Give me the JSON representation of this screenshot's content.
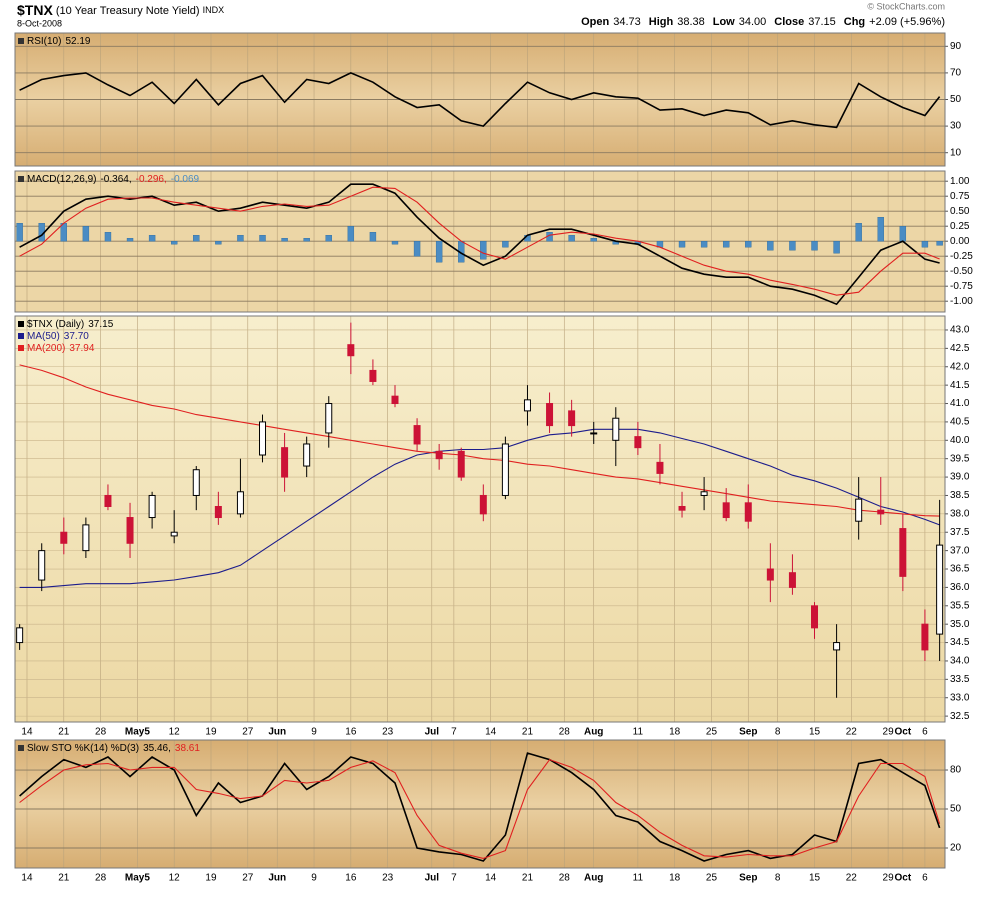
{
  "header": {
    "symbol": "$TNX",
    "description": "(10 Year Treasury Note Yield)",
    "exchange": "INDX",
    "date": "8-Oct-2008",
    "stats": [
      {
        "label": "Open",
        "value": "34.73"
      },
      {
        "label": "High",
        "value": "38.38"
      },
      {
        "label": "Low",
        "value": "34.00"
      },
      {
        "label": "Close",
        "value": "37.15"
      },
      {
        "label": "Chg",
        "value": "+2.09 (+5.96%)"
      }
    ],
    "watermark": "© StockCharts.com"
  },
  "chart_data": [
    {
      "type": "line",
      "xlim": [
        -1.63,
        124.73
      ],
      "ylim": [
        0,
        100
      ],
      "yticks": [
        10,
        30,
        50,
        70,
        90
      ],
      "grid": true,
      "x": [
        -1,
        2,
        5,
        8,
        11,
        14,
        17,
        20,
        23,
        26,
        29,
        32,
        35,
        38,
        41,
        44,
        47,
        50,
        53,
        56,
        59,
        62,
        65,
        68,
        71,
        74,
        77,
        80,
        83,
        86,
        89,
        92,
        95,
        98,
        101,
        104,
        107,
        110,
        113,
        116,
        119,
        122,
        124
      ],
      "series": [
        {
          "name": "RSI(10)",
          "value_label": "52.19",
          "color": "#000000",
          "values": [
            57,
            65,
            68,
            70,
            61,
            53,
            63,
            47,
            65,
            46,
            62,
            68,
            48,
            65,
            62,
            70,
            63,
            52,
            44,
            46,
            34,
            30,
            47,
            63,
            55,
            50,
            55,
            52,
            51,
            42,
            43,
            38,
            42,
            40,
            31,
            34,
            31,
            29,
            62,
            52,
            44,
            38,
            52.19
          ]
        }
      ]
    },
    {
      "type": "line",
      "xlim": [
        -1.63,
        124.73
      ],
      "ylim": [
        -1.18,
        1.17
      ],
      "grid": true,
      "yticks": [
        {
          "value": -1,
          "label": "-1.00"
        },
        {
          "value": -0.75,
          "label": "-0.75"
        },
        {
          "value": -0.5,
          "label": "-0.50"
        },
        {
          "value": -0.25,
          "label": "-0.25"
        },
        {
          "value": 0,
          "label": "0.00"
        },
        {
          "value": 0.25,
          "label": "0.25"
        },
        {
          "value": 0.5,
          "label": "0.50"
        },
        {
          "value": 0.75,
          "label": "0.75"
        },
        {
          "value": 1,
          "label": "1.00"
        }
      ],
      "x": [
        -1,
        2,
        5,
        8,
        11,
        14,
        17,
        20,
        23,
        26,
        29,
        32,
        35,
        38,
        41,
        44,
        47,
        50,
        53,
        56,
        59,
        62,
        65,
        68,
        71,
        74,
        77,
        80,
        83,
        86,
        89,
        92,
        95,
        98,
        101,
        104,
        107,
        110,
        113,
        116,
        119,
        122,
        124
      ],
      "series": [
        {
          "name": "MACD(12,26,9)",
          "value_label": "-0.364,",
          "color": "#000000",
          "kind": "line",
          "values": [
            -0.1,
            0.1,
            0.5,
            0.7,
            0.75,
            0.7,
            0.75,
            0.6,
            0.65,
            0.5,
            0.55,
            0.65,
            0.6,
            0.55,
            0.65,
            0.95,
            0.95,
            0.8,
            0.4,
            0.05,
            -0.2,
            -0.4,
            -0.25,
            0.1,
            0.2,
            0.2,
            0.1,
            0.0,
            -0.05,
            -0.25,
            -0.45,
            -0.55,
            -0.6,
            -0.6,
            -0.75,
            -0.8,
            -0.9,
            -1.05,
            -0.6,
            -0.15,
            0.0,
            -0.3,
            -0.364
          ]
        },
        {
          "value_label": "-0.296,",
          "color": "#e02020",
          "kind": "line",
          "values": [
            -0.25,
            -0.05,
            0.3,
            0.55,
            0.7,
            0.72,
            0.72,
            0.65,
            0.6,
            0.55,
            0.5,
            0.58,
            0.62,
            0.58,
            0.6,
            0.75,
            0.9,
            0.88,
            0.65,
            0.3,
            0.0,
            -0.2,
            -0.3,
            -0.1,
            0.1,
            0.15,
            0.12,
            0.05,
            0.0,
            -0.1,
            -0.25,
            -0.4,
            -0.5,
            -0.55,
            -0.65,
            -0.72,
            -0.8,
            -0.9,
            -0.85,
            -0.5,
            -0.2,
            -0.2,
            -0.296
          ]
        },
        {
          "value_label": "-0.069",
          "color": "#4a8cc4",
          "kind": "bar",
          "values": [
            0.3,
            0.3,
            0.3,
            0.25,
            0.15,
            0.05,
            0.1,
            -0.05,
            0.1,
            -0.05,
            0.1,
            0.1,
            0.05,
            0.05,
            0.1,
            0.25,
            0.15,
            -0.05,
            -0.25,
            -0.35,
            -0.35,
            -0.3,
            -0.1,
            0.1,
            0.15,
            0.1,
            0.05,
            -0.05,
            -0.05,
            -0.1,
            -0.1,
            -0.1,
            -0.1,
            -0.1,
            -0.15,
            -0.15,
            -0.15,
            -0.2,
            0.3,
            0.4,
            0.25,
            -0.1,
            -0.069
          ]
        }
      ]
    },
    {
      "type": "candlestick",
      "xlim": [
        -1.63,
        124.73
      ],
      "ylim": [
        32.34,
        43.38
      ],
      "grid": true,
      "up_color": "#000000",
      "down_color": "#cc1236",
      "yticks": [
        32.5,
        {
          "value": 33,
          "label": "33.0"
        },
        33.5,
        {
          "value": 34,
          "label": "34.0"
        },
        34.5,
        {
          "value": 35,
          "label": "35.0"
        },
        35.5,
        {
          "value": 36,
          "label": "36.0"
        },
        36.5,
        {
          "value": 37,
          "label": "37.0"
        },
        37.5,
        {
          "value": 38,
          "label": "38.0"
        },
        38.5,
        {
          "value": 39,
          "label": "39.0"
        },
        39.5,
        {
          "value": 40,
          "label": "40.0"
        },
        40.5,
        {
          "value": 41,
          "label": "41.0"
        },
        41.5,
        {
          "value": 42,
          "label": "42.0"
        },
        42.5,
        {
          "value": 43,
          "label": "43.0"
        }
      ],
      "xticks": [
        {
          "value": 0,
          "label": "14"
        },
        {
          "value": 5,
          "label": "21"
        },
        {
          "value": 10,
          "label": "28"
        },
        {
          "value": 15,
          "label": "May5"
        },
        {
          "value": 20,
          "label": "12"
        },
        {
          "value": 25,
          "label": "19"
        },
        {
          "value": 30,
          "label": "27"
        },
        {
          "value": 34,
          "label": "Jun"
        },
        {
          "value": 39,
          "label": "9"
        },
        {
          "value": 44,
          "label": "16"
        },
        {
          "value": 49,
          "label": "23"
        },
        {
          "value": 55,
          "label": "Jul"
        },
        {
          "value": 58,
          "label": "7"
        },
        {
          "value": 63,
          "label": "14"
        },
        {
          "value": 68,
          "label": "21"
        },
        {
          "value": 73,
          "label": "28"
        },
        {
          "value": 77,
          "label": "Aug"
        },
        {
          "value": 83,
          "label": "11"
        },
        {
          "value": 88,
          "label": "18"
        },
        {
          "value": 93,
          "label": "25"
        },
        {
          "value": 98,
          "label": "Sep"
        },
        {
          "value": 102,
          "label": "8"
        },
        {
          "value": 107,
          "label": "15"
        },
        {
          "value": 112,
          "label": "22"
        },
        {
          "value": 117,
          "label": "29"
        },
        {
          "value": 119,
          "label": "Oct"
        },
        {
          "value": 122,
          "label": "6"
        }
      ],
      "x": [
        -1,
        2,
        5,
        8,
        11,
        14,
        17,
        20,
        23,
        26,
        29,
        32,
        35,
        38,
        41,
        44,
        47,
        50,
        53,
        56,
        59,
        62,
        65,
        68,
        71,
        74,
        77,
        80,
        83,
        86,
        89,
        92,
        95,
        98,
        101,
        104,
        107,
        110,
        113,
        116,
        119,
        122,
        124
      ],
      "candles": {
        "name": "$TNX (Daily)",
        "value_label": "37.15",
        "open": [
          34.5,
          36.2,
          37.5,
          37.0,
          38.5,
          37.9,
          37.9,
          37.4,
          38.5,
          38.2,
          38.0,
          39.6,
          39.8,
          39.3,
          40.2,
          42.6,
          41.9,
          41.2,
          40.4,
          39.7,
          39.7,
          38.5,
          38.5,
          40.8,
          41.0,
          40.8,
          40.2,
          40.0,
          40.1,
          39.4,
          38.2,
          38.5,
          38.3,
          38.3,
          36.5,
          36.4,
          35.5,
          34.3,
          37.8,
          38.1,
          37.6,
          35.0,
          34.73
        ],
        "high": [
          35.0,
          37.2,
          37.9,
          37.9,
          38.8,
          38.3,
          38.6,
          38.1,
          39.3,
          38.6,
          39.5,
          40.7,
          40.2,
          40.1,
          41.2,
          43.2,
          42.2,
          41.5,
          40.6,
          39.9,
          39.8,
          38.8,
          40.1,
          41.5,
          41.3,
          41.1,
          40.5,
          40.9,
          40.5,
          39.9,
          38.6,
          39.0,
          38.7,
          38.8,
          37.2,
          36.9,
          35.6,
          35.0,
          39.0,
          39.0,
          38.0,
          35.4,
          38.38
        ],
        "low": [
          34.3,
          35.9,
          36.9,
          36.8,
          38.1,
          36.8,
          37.6,
          37.2,
          38.1,
          37.7,
          37.9,
          39.4,
          38.6,
          39.0,
          39.8,
          41.8,
          41.5,
          40.9,
          39.7,
          39.2,
          38.9,
          37.8,
          38.4,
          40.4,
          40.2,
          40.1,
          39.9,
          39.3,
          39.6,
          38.8,
          37.9,
          38.1,
          37.8,
          37.6,
          35.6,
          35.8,
          34.6,
          33.0,
          37.3,
          37.7,
          35.9,
          34.0,
          34.0
        ],
        "close": [
          34.9,
          37.0,
          37.2,
          37.7,
          38.2,
          37.2,
          38.5,
          37.5,
          39.2,
          37.9,
          38.6,
          40.5,
          39.0,
          39.9,
          41.0,
          42.3,
          41.6,
          41.0,
          39.9,
          39.5,
          39.0,
          38.0,
          39.9,
          41.1,
          40.4,
          40.4,
          40.2,
          40.6,
          39.8,
          39.1,
          38.1,
          38.6,
          37.9,
          37.8,
          36.2,
          36.0,
          34.9,
          34.5,
          38.4,
          38.0,
          36.3,
          34.3,
          37.15
        ]
      },
      "series": [
        {
          "name": "MA(50)",
          "value_label": "37.70",
          "color": "#1c1c8c",
          "values": [
            36.0,
            36.0,
            36.05,
            36.1,
            36.1,
            36.1,
            36.15,
            36.2,
            36.3,
            36.4,
            36.6,
            37.0,
            37.4,
            37.8,
            38.2,
            38.6,
            39.0,
            39.35,
            39.6,
            39.7,
            39.75,
            39.75,
            39.8,
            40.0,
            40.15,
            40.2,
            40.3,
            40.3,
            40.3,
            40.2,
            40.05,
            39.9,
            39.7,
            39.5,
            39.3,
            39.05,
            38.9,
            38.7,
            38.45,
            38.2,
            38.05,
            37.85,
            37.7
          ]
        },
        {
          "name": "MA(200)",
          "value_label": "37.94",
          "color": "#e02020",
          "values": [
            42.05,
            41.9,
            41.7,
            41.45,
            41.25,
            41.1,
            40.95,
            40.85,
            40.7,
            40.6,
            40.5,
            40.4,
            40.3,
            40.2,
            40.1,
            40.0,
            39.9,
            39.8,
            39.7,
            39.65,
            39.6,
            39.5,
            39.45,
            39.35,
            39.3,
            39.2,
            39.1,
            39.0,
            38.95,
            38.85,
            38.75,
            38.65,
            38.55,
            38.45,
            38.35,
            38.3,
            38.25,
            38.2,
            38.1,
            38.05,
            38.0,
            37.95,
            37.94
          ]
        }
      ]
    },
    {
      "type": "line",
      "xlim": [
        -1.63,
        124.73
      ],
      "ylim": [
        4.6,
        103.1
      ],
      "yticks": [
        20,
        50,
        80
      ],
      "grid": true,
      "xticks": [
        {
          "value": 0,
          "label": "14"
        },
        {
          "value": 5,
          "label": "21"
        },
        {
          "value": 10,
          "label": "28"
        },
        {
          "value": 15,
          "label": "May5"
        },
        {
          "value": 20,
          "label": "12"
        },
        {
          "value": 25,
          "label": "19"
        },
        {
          "value": 30,
          "label": "27"
        },
        {
          "value": 34,
          "label": "Jun"
        },
        {
          "value": 39,
          "label": "9"
        },
        {
          "value": 44,
          "label": "16"
        },
        {
          "value": 49,
          "label": "23"
        },
        {
          "value": 55,
          "label": "Jul"
        },
        {
          "value": 58,
          "label": "7"
        },
        {
          "value": 63,
          "label": "14"
        },
        {
          "value": 68,
          "label": "21"
        },
        {
          "value": 73,
          "label": "28"
        },
        {
          "value": 77,
          "label": "Aug"
        },
        {
          "value": 83,
          "label": "11"
        },
        {
          "value": 88,
          "label": "18"
        },
        {
          "value": 93,
          "label": "25"
        },
        {
          "value": 98,
          "label": "Sep"
        },
        {
          "value": 102,
          "label": "8"
        },
        {
          "value": 107,
          "label": "15"
        },
        {
          "value": 112,
          "label": "22"
        },
        {
          "value": 117,
          "label": "29"
        },
        {
          "value": 119,
          "label": "Oct"
        },
        {
          "value": 122,
          "label": "6"
        }
      ],
      "x": [
        -1,
        2,
        5,
        8,
        11,
        14,
        17,
        20,
        23,
        26,
        29,
        32,
        35,
        38,
        41,
        44,
        47,
        50,
        53,
        56,
        59,
        62,
        65,
        68,
        71,
        74,
        77,
        80,
        83,
        86,
        89,
        92,
        95,
        98,
        101,
        104,
        107,
        110,
        113,
        116,
        119,
        122,
        124
      ],
      "series": [
        {
          "name": "Slow STO %K(14) %D(3)",
          "value_label": "35.46,",
          "color": "#000000",
          "values": [
            60,
            75,
            88,
            82,
            90,
            75,
            90,
            80,
            45,
            70,
            55,
            60,
            85,
            65,
            75,
            90,
            85,
            70,
            20,
            17,
            15,
            10,
            30,
            93,
            88,
            78,
            65,
            45,
            40,
            25,
            18,
            10,
            15,
            18,
            12,
            15,
            30,
            25,
            85,
            88,
            78,
            68,
            35.46
          ]
        },
        {
          "value_label": "38.61",
          "color": "#e02020",
          "values": [
            55,
            68,
            80,
            84,
            85,
            80,
            82,
            82,
            65,
            62,
            58,
            60,
            72,
            70,
            72,
            82,
            87,
            78,
            45,
            22,
            16,
            12,
            18,
            65,
            88,
            82,
            72,
            55,
            45,
            32,
            22,
            14,
            13,
            15,
            14,
            14,
            20,
            25,
            60,
            85,
            85,
            75,
            38.61
          ]
        }
      ]
    }
  ]
}
